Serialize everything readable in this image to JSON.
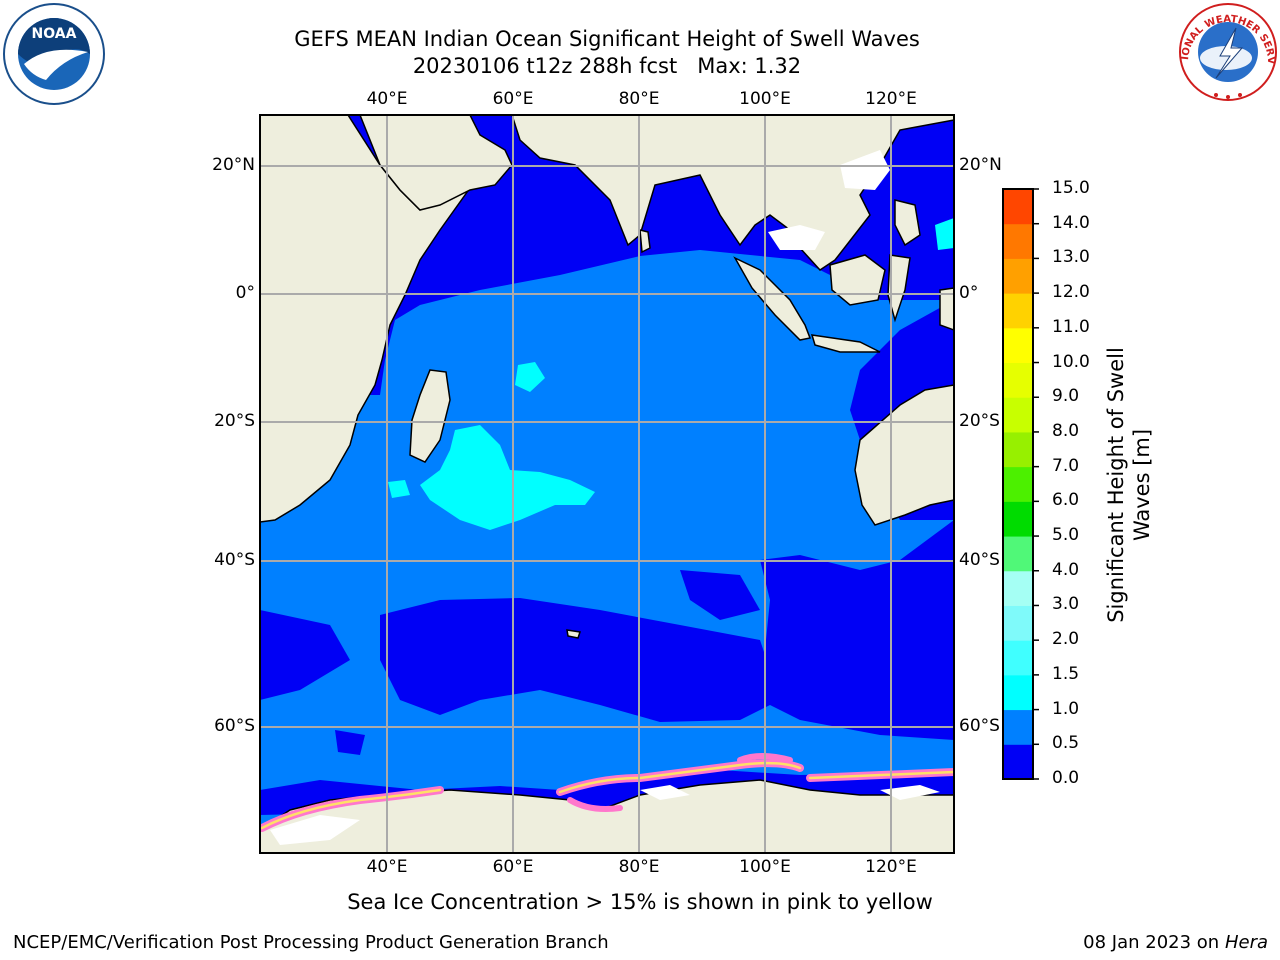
{
  "header": {
    "title_line1": "GEFS MEAN Indian Ocean Significant Height of Swell Waves",
    "title_line2": "20230106 t12z 288h fcst   Max: 1.32"
  },
  "logos": {
    "noaa_text": "NOAA",
    "nws_text": "NATIONAL WEATHER SERVICE"
  },
  "map": {
    "lon_labels": [
      "40°E",
      "60°E",
      "80°E",
      "100°E",
      "120°E"
    ],
    "lat_labels": [
      "20°N",
      "0°",
      "20°S",
      "40°S",
      "60°S"
    ]
  },
  "colorbar": {
    "title_line1": "Significant Height of Swell",
    "title_line2": "Waves [m]",
    "ticks": [
      "0.0",
      "0.5",
      "1.0",
      "1.5",
      "2.0",
      "3.0",
      "4.0",
      "5.0",
      "6.0",
      "7.0",
      "8.0",
      "9.0",
      "10.0",
      "11.0",
      "12.0",
      "13.0",
      "14.0",
      "15.0"
    ],
    "colors": [
      "#0000f5",
      "#0080ff",
      "#00ffff",
      "#40ffff",
      "#7ffafa",
      "#a5fff4",
      "#50f878",
      "#00dc00",
      "#4cf000",
      "#97f000",
      "#c8ff00",
      "#e6ff00",
      "#ffff00",
      "#ffd200",
      "#ffa000",
      "#ff7800",
      "#ff4600",
      "#ff0000"
    ]
  },
  "caption": "Sea Ice Concentration > 15% is shown in pink to yellow",
  "footer": {
    "left": "NCEP/EMC/Verification Post Processing Product Generation Branch",
    "date": "08 Jan 2023 on ",
    "machine": "Hera"
  },
  "colors": {
    "land": "#eeeedd",
    "swell_0": "#0000f5",
    "swell_05": "#0080ff",
    "swell_1": "#00ffff",
    "ice": "#ff77cc"
  }
}
